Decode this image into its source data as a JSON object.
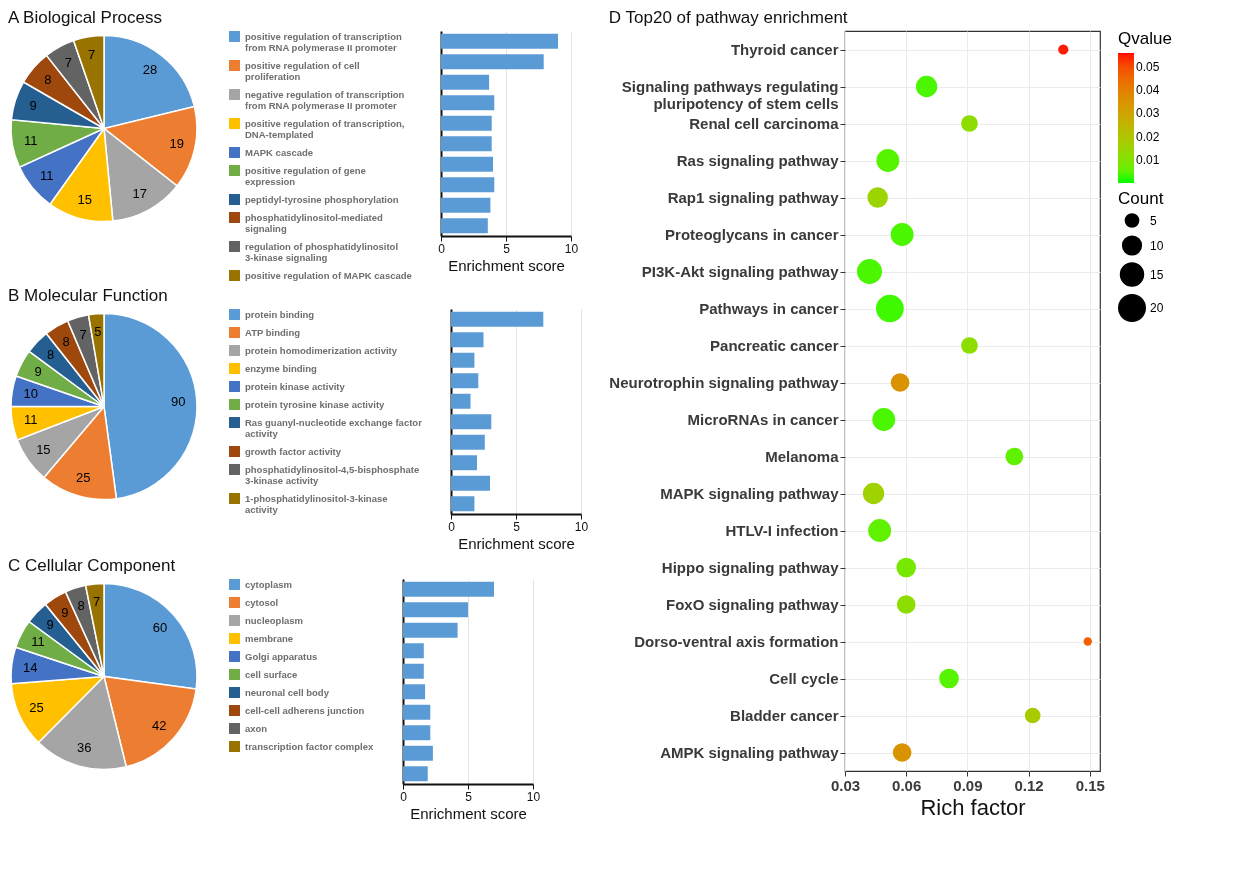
{
  "chart_data": [
    {
      "type": "pie",
      "title": "A Biological Process",
      "categories": [
        "positive regulation of transcription from RNA polymerase II promoter",
        "positive regulation of cell proliferation",
        "negative regulation of transcription from RNA polymerase II promoter",
        "positive regulation of transcription, DNA-templated",
        "MAPK cascade",
        "positive regulation of gene expression",
        "peptidyl-tyrosine phosphorylation",
        "phosphatidylinositol-mediated signaling",
        "regulation of phosphatidylinositol 3-kinase signaling",
        "positive regulation of MAPK cascade"
      ],
      "values": [
        28,
        19,
        17,
        15,
        11,
        11,
        9,
        8,
        7,
        7
      ],
      "colors": [
        "#5b9bd5",
        "#ed7d31",
        "#a5a5a5",
        "#ffc000",
        "#4472c4",
        "#70ad47",
        "#255e91",
        "#9e480e",
        "#636363",
        "#997300"
      ],
      "data_labels": true,
      "legend": "right"
    },
    {
      "type": "bar",
      "orientation": "horizontal",
      "categories": [
        null,
        null,
        null,
        null,
        null,
        null,
        null,
        null,
        null,
        null
      ],
      "values": [
        9.0,
        7.9,
        3.7,
        4.1,
        3.9,
        3.9,
        4.0,
        4.1,
        3.8,
        3.6
      ],
      "color": "#5b9bd5",
      "xlabel": "Enrichment score",
      "xlim": [
        0,
        10
      ],
      "xticks": [
        0,
        5,
        10
      ],
      "grid": "x",
      "tick_labels": "x"
    },
    {
      "type": "pie",
      "title": "B Molecular Function",
      "categories": [
        "protein binding",
        "ATP binding",
        "protein homodimerization activity",
        "enzyme binding",
        "protein kinase activity",
        "protein tyrosine kinase activity",
        "Ras guanyl-nucleotide exchange factor activity",
        "growth factor activity",
        "phosphatidylinositol-4,5-bisphosphate 3-kinase activity",
        "1-phosphatidylinositol-3-kinase activity"
      ],
      "values": [
        90,
        25,
        15,
        11,
        10,
        9,
        8,
        8,
        7,
        5
      ],
      "colors": [
        "#5b9bd5",
        "#ed7d31",
        "#a5a5a5",
        "#ffc000",
        "#4472c4",
        "#70ad47",
        "#255e91",
        "#9e480e",
        "#636363",
        "#997300"
      ],
      "data_labels": true,
      "legend": "right"
    },
    {
      "type": "bar",
      "orientation": "horizontal",
      "categories": [
        null,
        null,
        null,
        null,
        null,
        null,
        null,
        null,
        null,
        null
      ],
      "values": [
        7.1,
        2.5,
        1.8,
        2.1,
        1.5,
        3.1,
        2.6,
        2.0,
        3.0,
        1.8
      ],
      "color": "#5b9bd5",
      "xlabel": "Enrichment score",
      "xlim": [
        0,
        10
      ],
      "xticks": [
        0,
        5,
        10
      ],
      "grid": "x",
      "tick_labels": "x"
    },
    {
      "type": "pie",
      "title": "C Cellular Component",
      "categories": [
        "cytoplasm",
        "cytosol",
        "nucleoplasm",
        "membrane",
        "Golgi apparatus",
        "cell surface",
        "neuronal cell body",
        "cell-cell adherens junction",
        "axon",
        "transcription factor complex"
      ],
      "values": [
        60,
        42,
        36,
        25,
        14,
        11,
        9,
        9,
        8,
        7
      ],
      "colors": [
        "#5b9bd5",
        "#ed7d31",
        "#a5a5a5",
        "#ffc000",
        "#4472c4",
        "#70ad47",
        "#255e91",
        "#9e480e",
        "#636363",
        "#997300"
      ],
      "data_labels": true,
      "legend": "right"
    },
    {
      "type": "bar",
      "orientation": "horizontal",
      "categories": [
        null,
        null,
        null,
        null,
        null,
        null,
        null,
        null,
        null,
        null
      ],
      "values": [
        7.0,
        5.0,
        4.2,
        1.6,
        1.6,
        1.7,
        2.1,
        2.1,
        2.3,
        1.9
      ],
      "color": "#5b9bd5",
      "xlabel": "Enrichment score",
      "xlim": [
        0,
        10
      ],
      "xticks": [
        0,
        5,
        10
      ],
      "grid": "x",
      "tick_labels": "x"
    },
    {
      "type": "bubble",
      "orientation": "horizontal",
      "title": "D Top20 of pathway enrichment",
      "xlabel": "Rich factor",
      "categories": [
        "Thyroid cancer",
        "Signaling pathways regulating pluripotency of stem cells",
        "Renal cell carcinoma",
        "Ras signaling pathway",
        "Rap1 signaling pathway",
        "Proteoglycans in cancer",
        "PI3K-Akt signaling pathway",
        "Pathways in cancer",
        "Pancreatic cancer",
        "Neurotrophin signaling pathway",
        "MicroRNAs in cancer",
        "Melanoma",
        "MAPK signaling pathway",
        "HTLV-I infection",
        "Hippo signaling pathway",
        "FoxO signaling pathway",
        "Dorso-ventral axis formation",
        "Cell cycle",
        "Bladder cancer",
        "AMPK signaling pathway"
      ],
      "values": [
        0.137,
        0.07,
        0.091,
        0.051,
        0.046,
        0.058,
        0.042,
        0.052,
        0.091,
        0.057,
        0.049,
        0.113,
        0.044,
        0.047,
        0.06,
        0.06,
        0.149,
        0.081,
        0.122,
        0.058
      ],
      "sizes": [
        3,
        13,
        8,
        15,
        12,
        15,
        18,
        22,
        8,
        10,
        15,
        9,
        13,
        15,
        11,
        10,
        2,
        11,
        7,
        10
      ],
      "cvalues": [
        0.055,
        0.003,
        0.012,
        0.004,
        0.015,
        0.003,
        0.003,
        0.002,
        0.012,
        0.035,
        0.003,
        0.005,
        0.016,
        0.005,
        0.008,
        0.012,
        0.047,
        0.004,
        0.018,
        0.035
      ],
      "size_legend": [
        5,
        10,
        15,
        20
      ],
      "legend_title": "Count",
      "clabel": "Qvalue",
      "clim": [
        0,
        0.056
      ],
      "cticks": [
        0.01,
        0.02,
        0.03,
        0.04,
        0.05
      ],
      "xlim": [
        0.03,
        0.155
      ],
      "xticks": [
        0.03,
        0.06,
        0.09,
        0.12,
        0.15
      ],
      "grid": true,
      "marker": "circle"
    }
  ]
}
